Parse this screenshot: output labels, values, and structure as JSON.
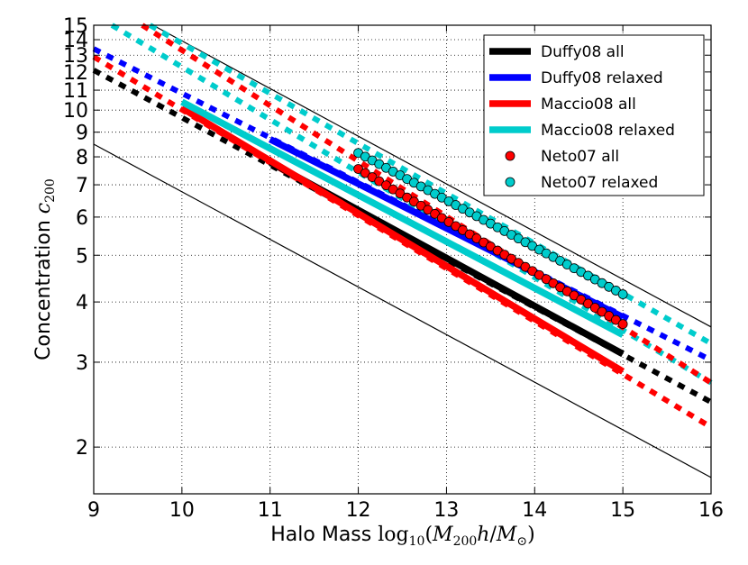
{
  "chart_data": {
    "type": "line",
    "title": "",
    "xlabel": "Halo Mass",
    "xlabel_math": "log10(M200 h/M⊙)",
    "xlabel_math_parts": {
      "func": "log",
      "func_sub": "10",
      "M1": "M",
      "sub1": "200",
      "h": "h",
      "slash": "/",
      "M2": "M",
      "sub2": "⊙",
      "open": "(",
      "close": ")"
    },
    "ylabel": "Concentration",
    "ylabel_math": "c200",
    "ylabel_math_parts": {
      "c": "c",
      "sub": "200"
    },
    "xlim": [
      9,
      16
    ],
    "ylim": [
      1.6,
      15
    ],
    "yscale": "log",
    "grid": true,
    "x_ticks": [
      9,
      10,
      11,
      12,
      13,
      14,
      15,
      16
    ],
    "x_tick_labels": [
      "9",
      "10",
      "11",
      "12",
      "13",
      "14",
      "15",
      "16"
    ],
    "y_ticks": [
      2,
      3,
      4,
      5,
      6,
      7,
      8,
      9,
      10,
      11,
      12,
      13,
      14,
      15
    ],
    "y_tick_labels": [
      "2",
      "3",
      "4",
      "5",
      "6",
      "7",
      "8",
      "9",
      "10",
      "11",
      "12",
      "13",
      "14",
      "15"
    ],
    "legend_position": "top-right",
    "series": [
      {
        "name": "Duffy08 all",
        "color": "#000000",
        "style": "line",
        "x": [
          11,
          15
        ],
        "y": [
          7.8,
          3.12
        ],
        "extension": {
          "x": [
            9,
            16
          ],
          "y": [
            12.1,
            2.48
          ]
        }
      },
      {
        "name": "Duffy08 relaxed",
        "color": "#0000ff",
        "style": "line",
        "x": [
          11,
          15
        ],
        "y": [
          8.7,
          3.72
        ],
        "extension": {
          "x": [
            9,
            16
          ],
          "y": [
            13.4,
            3.03
          ]
        }
      },
      {
        "name": "Maccio08 all",
        "color": "#ff0000",
        "style": "line",
        "x": [
          10,
          15
        ],
        "y": [
          10.1,
          2.87
        ],
        "extension": {
          "x": [
            9,
            16
          ],
          "y": [
            12.9,
            2.2
          ]
        }
      },
      {
        "name": "Maccio08 relaxed",
        "color": "#00cccc",
        "style": "line",
        "x": [
          10,
          15
        ],
        "y": [
          10.4,
          3.42
        ],
        "extension": {
          "x": [
            9,
            16
          ],
          "y": [
            15.8,
            2.72
          ]
        }
      },
      {
        "name": "Neto07 all",
        "color": "#ff0000",
        "style": "markers",
        "x": [
          12,
          15
        ],
        "y": [
          7.55,
          3.6
        ],
        "extension": {
          "x": [
            9.5,
            16
          ],
          "y": [
            15.2,
            2.72
          ]
        }
      },
      {
        "name": "Neto07 relaxed",
        "color": "#00cccc",
        "style": "markers",
        "x": [
          12,
          15
        ],
        "y": [
          8.15,
          4.15
        ],
        "extension": {
          "x": [
            9.5,
            16
          ],
          "y": [
            15.5,
            3.28
          ]
        }
      }
    ],
    "reference_lines": [
      {
        "x": [
          9,
          16
        ],
        "y": [
          8.5,
          1.73
        ]
      },
      {
        "x": [
          9.5,
          16
        ],
        "y": [
          15.6,
          3.55
        ]
      }
    ]
  }
}
